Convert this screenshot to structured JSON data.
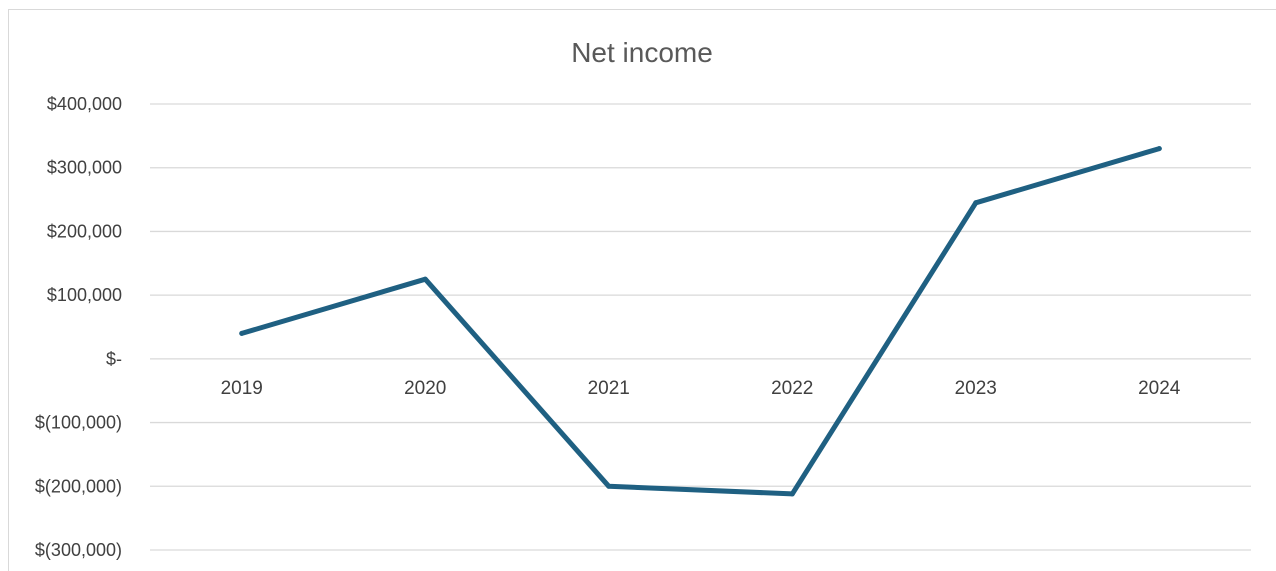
{
  "chart_data": {
    "type": "line",
    "title": "Net income",
    "categories": [
      "2019",
      "2020",
      "2021",
      "2022",
      "2023",
      "2024"
    ],
    "series": [
      {
        "values": [
          40000,
          125000,
          -200000,
          -212000,
          245000,
          330000
        ],
        "color": "#1f6082"
      }
    ],
    "ylim": [
      -300000,
      400000
    ],
    "y_ticks": [
      400000,
      300000,
      200000,
      100000,
      0,
      -100000,
      -200000,
      -300000
    ],
    "y_tick_labels": [
      "$400,000",
      "$300,000",
      "$200,000",
      "$100,000",
      "$-",
      "$(100,000)",
      "$(200,000)",
      "$(300,000)"
    ],
    "grid": true,
    "gridline_color": "#d9d9d9",
    "legend": "none"
  }
}
